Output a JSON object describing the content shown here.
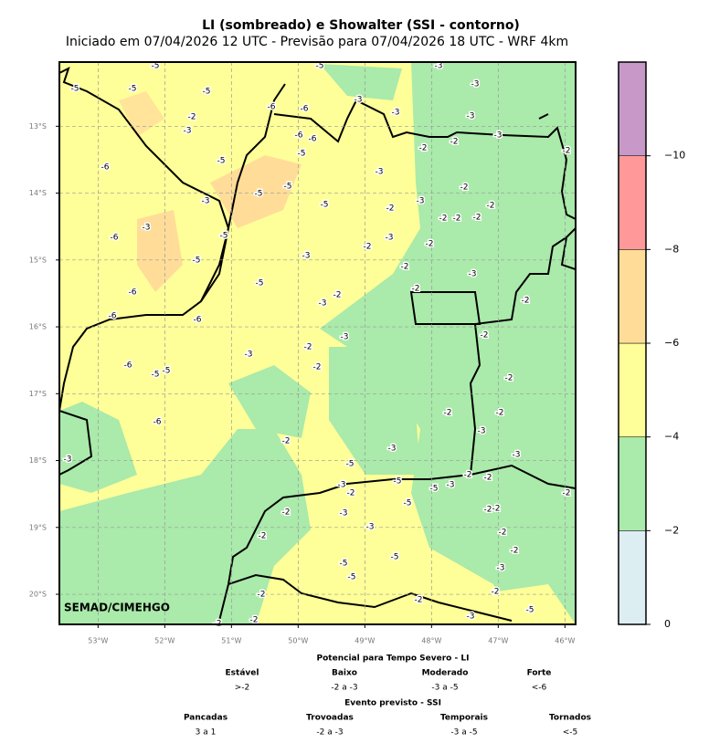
{
  "map": {
    "title": "LI (sombreado) e Showalter (SSI - contorno)",
    "subtitle": "Iniciado em 07/04/2026 12 UTC - Previsão para 07/04/2026 18 UTC - WRF 4km",
    "credit": "SEMAD/CIMEHGO",
    "xlim": [
      -53.58,
      -45.84
    ],
    "ylim": [
      -20.45,
      -12.04
    ],
    "grid": true,
    "xticks": [
      {
        "value": -53,
        "label": "53°W"
      },
      {
        "value": -52,
        "label": "52°W"
      },
      {
        "value": -51,
        "label": "51°W"
      },
      {
        "value": -50,
        "label": "50°W"
      },
      {
        "value": -49,
        "label": "49°W"
      },
      {
        "value": -48,
        "label": "48°W"
      },
      {
        "value": -47,
        "label": "47°W"
      },
      {
        "value": -46,
        "label": "46°W"
      }
    ],
    "yticks": [
      {
        "value": -13,
        "label": "13°S"
      },
      {
        "value": -14,
        "label": "14°S"
      },
      {
        "value": -15,
        "label": "15°S"
      },
      {
        "value": -16,
        "label": "16°S"
      },
      {
        "value": -17,
        "label": "17°S"
      },
      {
        "value": -18,
        "label": "18°S"
      },
      {
        "value": -19,
        "label": "19°S"
      },
      {
        "value": -20,
        "label": "20°S"
      }
    ],
    "contour_labels": [
      "-5",
      "-5",
      "-5",
      "-5",
      "-5",
      "-3",
      "-3",
      "-3",
      "-3",
      "-3",
      "-2",
      "-3",
      "-6",
      "-6",
      "-6",
      "-6",
      "-5",
      "-6",
      "-5",
      "-3",
      "-2",
      "-2",
      "-3",
      "-2",
      "-2",
      "-2",
      "-3",
      "-2",
      "-2",
      "-2",
      "-2",
      "-3",
      "-3",
      "-5",
      "-5",
      "-5",
      "-5",
      "-6",
      "-3",
      "-2",
      "-3",
      "-2",
      "-2",
      "-3",
      "-2",
      "-2",
      "-2",
      "-3",
      "-5",
      "-5",
      "-6",
      "-6",
      "-6",
      "-3",
      "-2",
      "-3",
      "-2",
      "-2",
      "-2",
      "-6",
      "-5",
      "-5",
      "-6",
      "-2",
      "-2",
      "-3",
      "-2",
      "-3",
      "-3",
      "-3",
      "-5",
      "-5",
      "-5",
      "-3",
      "-2",
      "-2",
      "-3",
      "-2",
      "-5",
      "-2",
      "-2",
      "-2",
      "-2",
      "-3",
      "-3",
      "-2",
      "-2",
      "-2",
      "-5",
      "-5",
      "-3",
      "-5",
      "-2",
      "-2",
      "-2",
      "-5",
      "-3",
      "-2",
      "-2"
    ]
  },
  "colorbar": {
    "lim": [
      0,
      -12
    ],
    "ticks": [
      0,
      {
        "value": -2,
        "label": "−2"
      },
      {
        "value": -4,
        "label": "−4"
      },
      {
        "value": -6,
        "label": "−6"
      },
      {
        "value": -8,
        "label": "−8"
      },
      {
        "value": -10,
        "label": "−10"
      }
    ],
    "colors": [
      "#ddeef3",
      "#aaeaaa",
      "#ffff99",
      "#ffdd99",
      "#ff9999",
      "#c899c8"
    ]
  },
  "legend": {
    "li_title": "Potencial para Tempo Severo - LI",
    "li": [
      {
        "name": "Estável",
        "range": ">-2"
      },
      {
        "name": "Baixo",
        "range": "-2 a -3"
      },
      {
        "name": "Moderado",
        "range": "-3 a -5"
      },
      {
        "name": "Forte",
        "range": "<-6"
      }
    ],
    "ssi_title": "Evento previsto - SSI",
    "ssi": [
      {
        "name": "Pancadas",
        "range": "3 a 1"
      },
      {
        "name": "Trovoadas",
        "range": "-2 a -3"
      },
      {
        "name": "Temporais",
        "range": "-3 a -5"
      },
      {
        "name": "Tornados",
        "range": "<-5"
      }
    ]
  }
}
